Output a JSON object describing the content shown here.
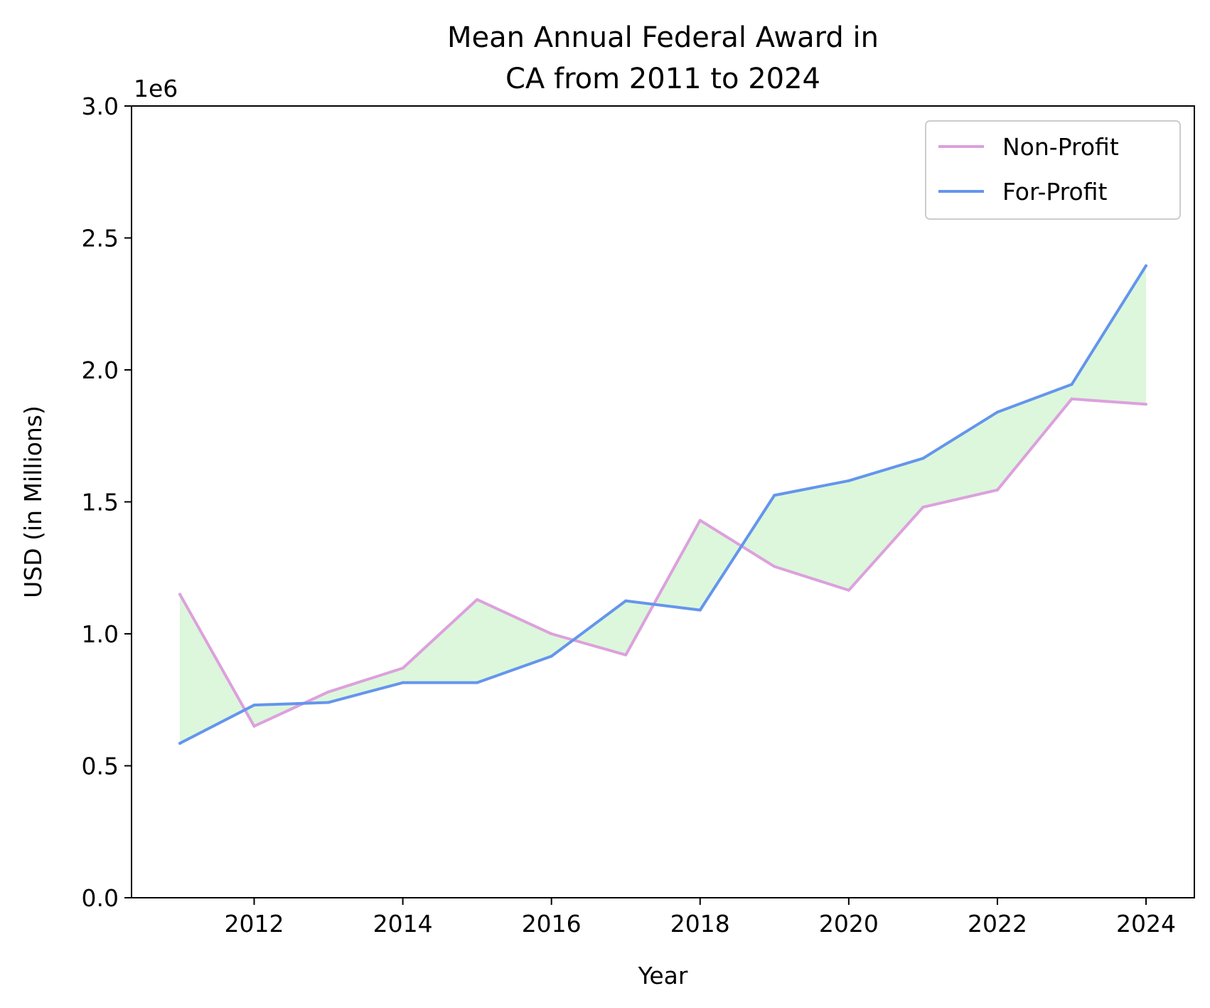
{
  "chart_data": {
    "type": "line",
    "title_lines": [
      "Mean Annual Federal Award in",
      "CA from 2011 to 2024"
    ],
    "xlabel": "Year",
    "ylabel": "USD (in Millions)",
    "y_offset_label": "1e6",
    "x": [
      2011,
      2012,
      2013,
      2014,
      2015,
      2016,
      2017,
      2018,
      2019,
      2020,
      2021,
      2022,
      2023,
      2024
    ],
    "xlim": [
      2010.35,
      2024.65
    ],
    "ylim": [
      0,
      3.0
    ],
    "xticks": [
      2012,
      2014,
      2016,
      2018,
      2020,
      2022,
      2024
    ],
    "yticks": [
      0.0,
      0.5,
      1.0,
      1.5,
      2.0,
      2.5,
      3.0
    ],
    "series": [
      {
        "name": "Non-Profit",
        "color": "#dda0dd",
        "values": [
          1.15,
          0.65,
          0.78,
          0.87,
          1.13,
          1.0,
          0.92,
          1.43,
          1.255,
          1.165,
          1.48,
          1.545,
          1.89,
          1.87
        ]
      },
      {
        "name": "For-Profit",
        "color": "#6495ed",
        "values": [
          0.585,
          0.73,
          0.74,
          0.815,
          0.815,
          0.915,
          1.125,
          1.09,
          1.525,
          1.58,
          1.665,
          1.84,
          1.945,
          2.395
        ]
      }
    ],
    "fill_between_color": "#dcf7dc",
    "legend_position": "top-right",
    "grid": false
  }
}
